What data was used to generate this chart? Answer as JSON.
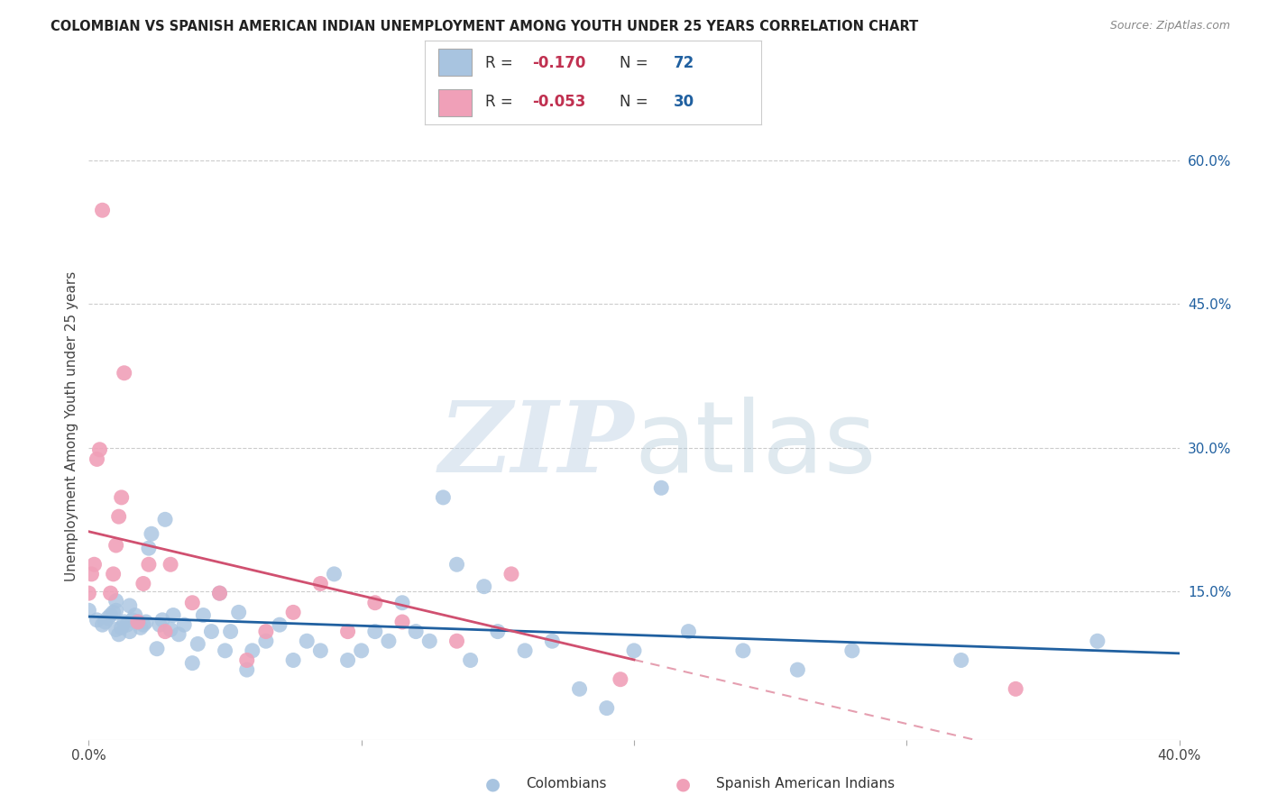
{
  "title": "COLOMBIAN VS SPANISH AMERICAN INDIAN UNEMPLOYMENT AMONG YOUTH UNDER 25 YEARS CORRELATION CHART",
  "source": "Source: ZipAtlas.com",
  "ylabel": "Unemployment Among Youth under 25 years",
  "xlim": [
    0.0,
    0.4
  ],
  "ylim": [
    -0.005,
    0.65
  ],
  "xticks": [
    0.0,
    0.1,
    0.2,
    0.3,
    0.4
  ],
  "xtick_labels": [
    "0.0%",
    "",
    "",
    "",
    "40.0%"
  ],
  "ytick_labels_right": [
    "60.0%",
    "45.0%",
    "30.0%",
    "15.0%"
  ],
  "yticks_right": [
    0.6,
    0.45,
    0.3,
    0.15
  ],
  "blue_color": "#a8c4e0",
  "blue_line_color": "#2060a0",
  "pink_color": "#f0a0b8",
  "pink_line_color": "#d05070",
  "colombian_x": [
    0.0,
    0.003,
    0.005,
    0.006,
    0.007,
    0.008,
    0.009,
    0.01,
    0.01,
    0.01,
    0.011,
    0.012,
    0.013,
    0.014,
    0.015,
    0.015,
    0.016,
    0.017,
    0.018,
    0.019,
    0.02,
    0.021,
    0.022,
    0.023,
    0.025,
    0.026,
    0.027,
    0.028,
    0.03,
    0.031,
    0.033,
    0.035,
    0.038,
    0.04,
    0.042,
    0.045,
    0.048,
    0.05,
    0.052,
    0.055,
    0.058,
    0.06,
    0.065,
    0.07,
    0.075,
    0.08,
    0.085,
    0.09,
    0.095,
    0.1,
    0.105,
    0.11,
    0.115,
    0.12,
    0.125,
    0.13,
    0.135,
    0.14,
    0.145,
    0.15,
    0.16,
    0.17,
    0.18,
    0.19,
    0.2,
    0.21,
    0.22,
    0.24,
    0.26,
    0.28,
    0.32,
    0.37
  ],
  "colombian_y": [
    0.13,
    0.12,
    0.115,
    0.118,
    0.122,
    0.125,
    0.128,
    0.13,
    0.11,
    0.14,
    0.105,
    0.112,
    0.118,
    0.115,
    0.108,
    0.135,
    0.12,
    0.125,
    0.118,
    0.112,
    0.115,
    0.118,
    0.195,
    0.21,
    0.09,
    0.115,
    0.12,
    0.225,
    0.11,
    0.125,
    0.105,
    0.115,
    0.075,
    0.095,
    0.125,
    0.108,
    0.148,
    0.088,
    0.108,
    0.128,
    0.068,
    0.088,
    0.098,
    0.115,
    0.078,
    0.098,
    0.088,
    0.168,
    0.078,
    0.088,
    0.108,
    0.098,
    0.138,
    0.108,
    0.098,
    0.248,
    0.178,
    0.078,
    0.155,
    0.108,
    0.088,
    0.098,
    0.048,
    0.028,
    0.088,
    0.258,
    0.108,
    0.088,
    0.068,
    0.088,
    0.078,
    0.098
  ],
  "spanish_x": [
    0.0,
    0.001,
    0.002,
    0.003,
    0.004,
    0.005,
    0.008,
    0.009,
    0.01,
    0.011,
    0.012,
    0.013,
    0.018,
    0.02,
    0.022,
    0.028,
    0.03,
    0.038,
    0.048,
    0.058,
    0.065,
    0.075,
    0.085,
    0.095,
    0.105,
    0.115,
    0.135,
    0.155,
    0.195,
    0.34
  ],
  "spanish_y": [
    0.148,
    0.168,
    0.178,
    0.288,
    0.298,
    0.548,
    0.148,
    0.168,
    0.198,
    0.228,
    0.248,
    0.378,
    0.118,
    0.158,
    0.178,
    0.108,
    0.178,
    0.138,
    0.148,
    0.078,
    0.108,
    0.128,
    0.158,
    0.108,
    0.138,
    0.118,
    0.098,
    0.168,
    0.058,
    0.048
  ]
}
